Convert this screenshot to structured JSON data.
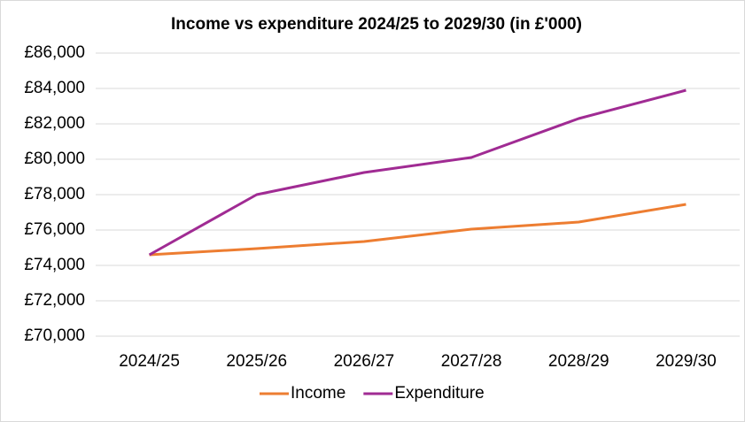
{
  "chart_data": {
    "type": "line",
    "title": "Income vs expenditure 2024/25 to 2029/30 (in £'000)",
    "categories": [
      "2024/25",
      "2025/26",
      "2026/27",
      "2027/28",
      "2028/29",
      "2029/30"
    ],
    "series": [
      {
        "name": "Income",
        "color": "#ed7d31",
        "values": [
          74600,
          74950,
          75350,
          76050,
          76450,
          77450
        ]
      },
      {
        "name": "Expenditure",
        "color": "#a02b93",
        "values": [
          74600,
          78000,
          79250,
          80100,
          82300,
          83900
        ]
      }
    ],
    "ylim": [
      70000,
      86000
    ],
    "yticks": [
      {
        "value": 70000,
        "label": "£70,000"
      },
      {
        "value": 72000,
        "label": "£72,000"
      },
      {
        "value": 74000,
        "label": "£74,000"
      },
      {
        "value": 76000,
        "label": "£76,000"
      },
      {
        "value": 78000,
        "label": "£78,000"
      },
      {
        "value": 80000,
        "label": "£80,000"
      },
      {
        "value": 82000,
        "label": "£82,000"
      },
      {
        "value": 84000,
        "label": "£84,000"
      },
      {
        "value": 86000,
        "label": "£86,000"
      }
    ],
    "grid": true,
    "legend": "bottom"
  }
}
